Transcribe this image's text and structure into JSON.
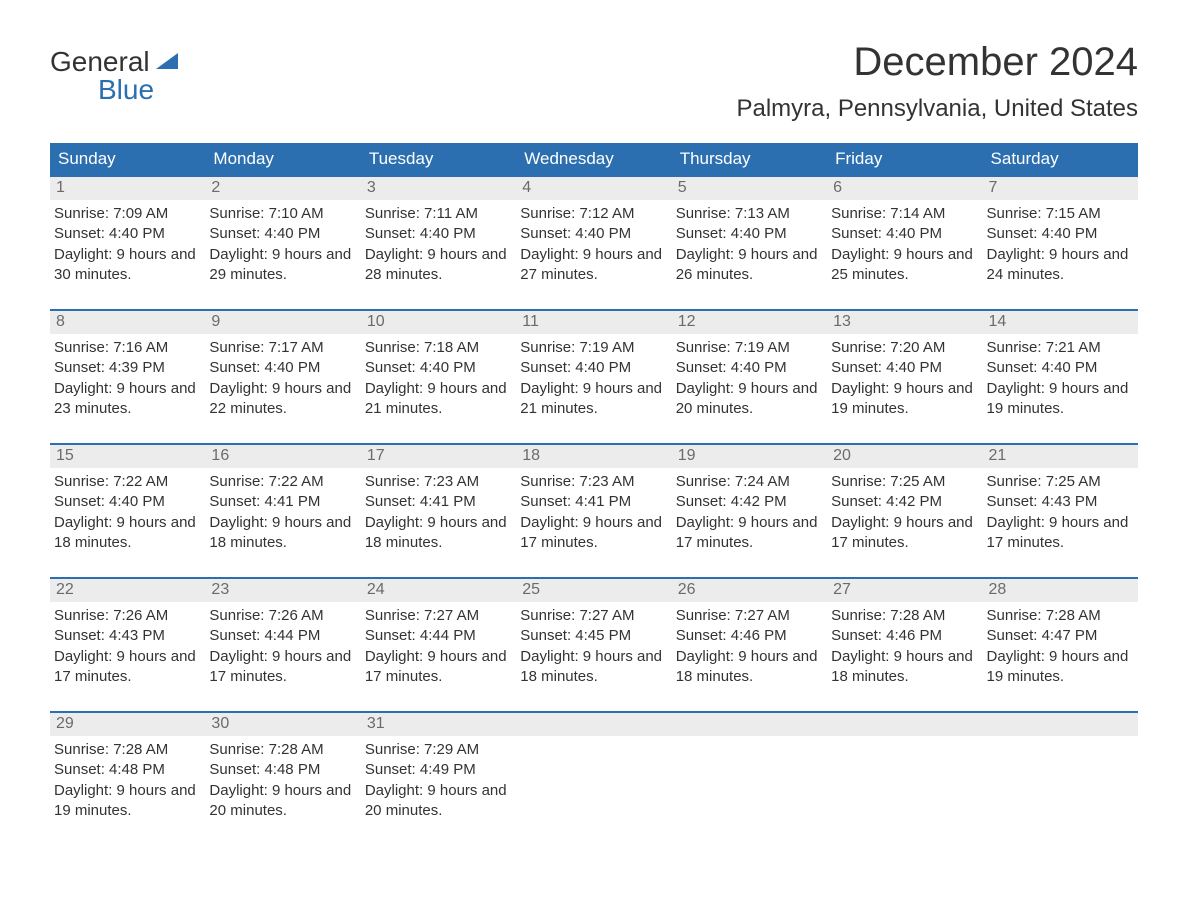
{
  "logo": {
    "word1": "General",
    "word2": "Blue"
  },
  "title": "December 2024",
  "location": "Palmyra, Pennsylvania, United States",
  "colors": {
    "header_bg": "#2b6fb0",
    "header_text": "#ffffff",
    "daynum_bg": "#ececec",
    "daynum_text": "#6b6b6b",
    "body_text": "#333333",
    "week_divider": "#2b6fb0",
    "page_bg": "#ffffff",
    "logo_blue": "#2b6fb0"
  },
  "typography": {
    "title_fontsize": 40,
    "location_fontsize": 24,
    "dayheader_fontsize": 17,
    "daynum_fontsize": 16,
    "body_fontsize": 15,
    "font_family": "Arial"
  },
  "day_names": [
    "Sunday",
    "Monday",
    "Tuesday",
    "Wednesday",
    "Thursday",
    "Friday",
    "Saturday"
  ],
  "labels": {
    "sunrise": "Sunrise:",
    "sunset": "Sunset:",
    "daylight_prefix": "Daylight:"
  },
  "weeks": [
    [
      {
        "num": "1",
        "sunrise": "7:09 AM",
        "sunset": "4:40 PM",
        "daylight": "9 hours and 30 minutes."
      },
      {
        "num": "2",
        "sunrise": "7:10 AM",
        "sunset": "4:40 PM",
        "daylight": "9 hours and 29 minutes."
      },
      {
        "num": "3",
        "sunrise": "7:11 AM",
        "sunset": "4:40 PM",
        "daylight": "9 hours and 28 minutes."
      },
      {
        "num": "4",
        "sunrise": "7:12 AM",
        "sunset": "4:40 PM",
        "daylight": "9 hours and 27 minutes."
      },
      {
        "num": "5",
        "sunrise": "7:13 AM",
        "sunset": "4:40 PM",
        "daylight": "9 hours and 26 minutes."
      },
      {
        "num": "6",
        "sunrise": "7:14 AM",
        "sunset": "4:40 PM",
        "daylight": "9 hours and 25 minutes."
      },
      {
        "num": "7",
        "sunrise": "7:15 AM",
        "sunset": "4:40 PM",
        "daylight": "9 hours and 24 minutes."
      }
    ],
    [
      {
        "num": "8",
        "sunrise": "7:16 AM",
        "sunset": "4:39 PM",
        "daylight": "9 hours and 23 minutes."
      },
      {
        "num": "9",
        "sunrise": "7:17 AM",
        "sunset": "4:40 PM",
        "daylight": "9 hours and 22 minutes."
      },
      {
        "num": "10",
        "sunrise": "7:18 AM",
        "sunset": "4:40 PM",
        "daylight": "9 hours and 21 minutes."
      },
      {
        "num": "11",
        "sunrise": "7:19 AM",
        "sunset": "4:40 PM",
        "daylight": "9 hours and 21 minutes."
      },
      {
        "num": "12",
        "sunrise": "7:19 AM",
        "sunset": "4:40 PM",
        "daylight": "9 hours and 20 minutes."
      },
      {
        "num": "13",
        "sunrise": "7:20 AM",
        "sunset": "4:40 PM",
        "daylight": "9 hours and 19 minutes."
      },
      {
        "num": "14",
        "sunrise": "7:21 AM",
        "sunset": "4:40 PM",
        "daylight": "9 hours and 19 minutes."
      }
    ],
    [
      {
        "num": "15",
        "sunrise": "7:22 AM",
        "sunset": "4:40 PM",
        "daylight": "9 hours and 18 minutes."
      },
      {
        "num": "16",
        "sunrise": "7:22 AM",
        "sunset": "4:41 PM",
        "daylight": "9 hours and 18 minutes."
      },
      {
        "num": "17",
        "sunrise": "7:23 AM",
        "sunset": "4:41 PM",
        "daylight": "9 hours and 18 minutes."
      },
      {
        "num": "18",
        "sunrise": "7:23 AM",
        "sunset": "4:41 PM",
        "daylight": "9 hours and 17 minutes."
      },
      {
        "num": "19",
        "sunrise": "7:24 AM",
        "sunset": "4:42 PM",
        "daylight": "9 hours and 17 minutes."
      },
      {
        "num": "20",
        "sunrise": "7:25 AM",
        "sunset": "4:42 PM",
        "daylight": "9 hours and 17 minutes."
      },
      {
        "num": "21",
        "sunrise": "7:25 AM",
        "sunset": "4:43 PM",
        "daylight": "9 hours and 17 minutes."
      }
    ],
    [
      {
        "num": "22",
        "sunrise": "7:26 AM",
        "sunset": "4:43 PM",
        "daylight": "9 hours and 17 minutes."
      },
      {
        "num": "23",
        "sunrise": "7:26 AM",
        "sunset": "4:44 PM",
        "daylight": "9 hours and 17 minutes."
      },
      {
        "num": "24",
        "sunrise": "7:27 AM",
        "sunset": "4:44 PM",
        "daylight": "9 hours and 17 minutes."
      },
      {
        "num": "25",
        "sunrise": "7:27 AM",
        "sunset": "4:45 PM",
        "daylight": "9 hours and 18 minutes."
      },
      {
        "num": "26",
        "sunrise": "7:27 AM",
        "sunset": "4:46 PM",
        "daylight": "9 hours and 18 minutes."
      },
      {
        "num": "27",
        "sunrise": "7:28 AM",
        "sunset": "4:46 PM",
        "daylight": "9 hours and 18 minutes."
      },
      {
        "num": "28",
        "sunrise": "7:28 AM",
        "sunset": "4:47 PM",
        "daylight": "9 hours and 19 minutes."
      }
    ],
    [
      {
        "num": "29",
        "sunrise": "7:28 AM",
        "sunset": "4:48 PM",
        "daylight": "9 hours and 19 minutes."
      },
      {
        "num": "30",
        "sunrise": "7:28 AM",
        "sunset": "4:48 PM",
        "daylight": "9 hours and 20 minutes."
      },
      {
        "num": "31",
        "sunrise": "7:29 AM",
        "sunset": "4:49 PM",
        "daylight": "9 hours and 20 minutes."
      },
      {
        "empty": true
      },
      {
        "empty": true
      },
      {
        "empty": true
      },
      {
        "empty": true
      }
    ]
  ]
}
